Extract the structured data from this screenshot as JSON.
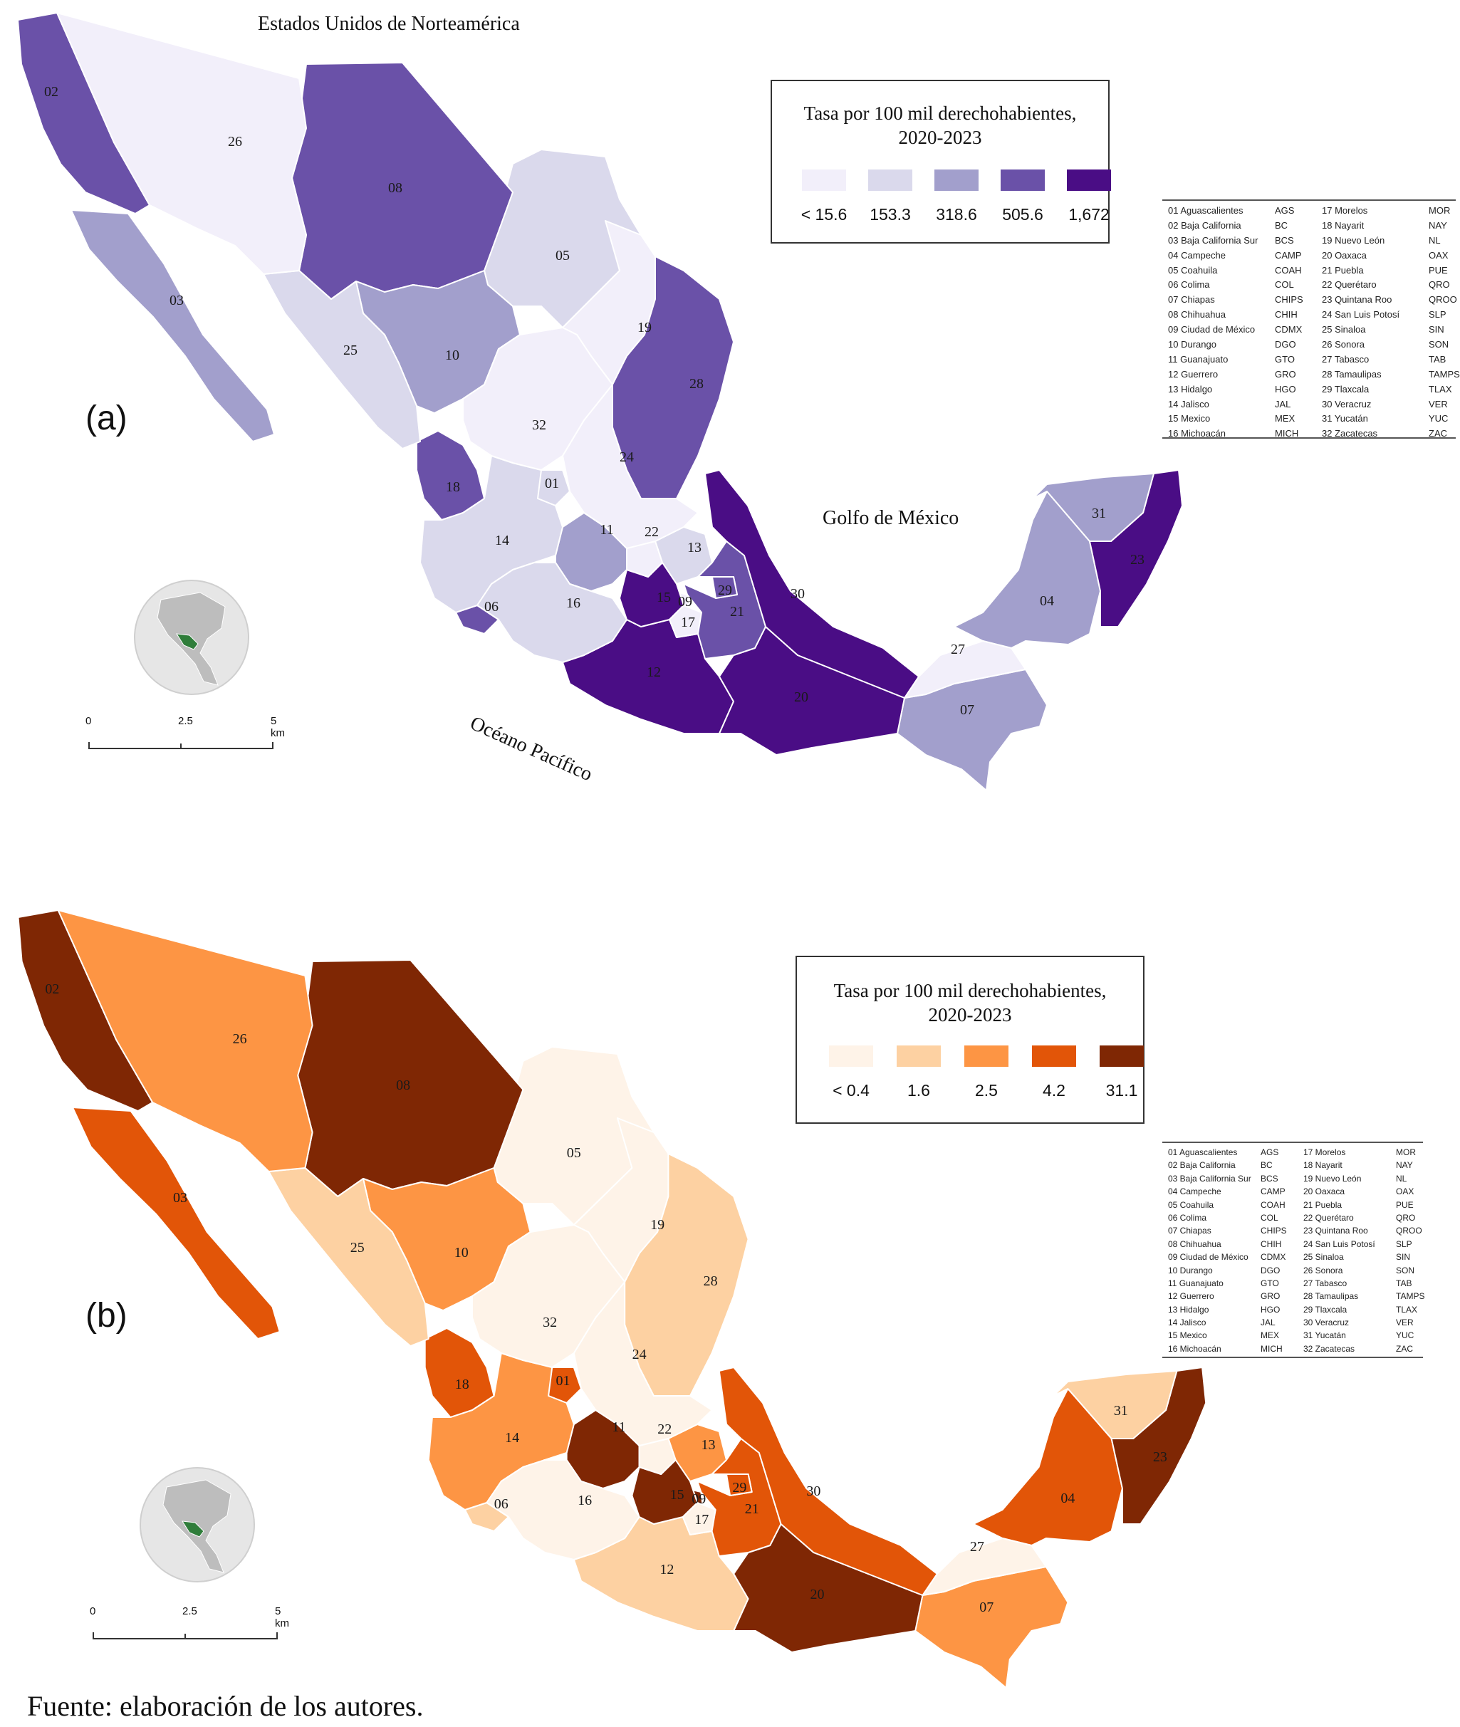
{
  "figure": {
    "source_note": "Fuente: elaboración de los autores.",
    "panels": [
      {
        "id": "a",
        "panel_label": "(a)",
        "labels": {
          "north": "Estados Unidos de Norteamérica",
          "gulf": "Golfo de México",
          "pacific": "Océano Pacífico"
        },
        "legend": {
          "title_line1": "Tasa por 100 mil derechohabientes,",
          "title_line2": "2020-2023",
          "classes": [
            {
              "label": "< 15.6",
              "color": "#f2effa"
            },
            {
              "label": "153.3",
              "color": "#dad9ec"
            },
            {
              "label": "318.6",
              "color": "#a29fcc"
            },
            {
              "label": "505.6",
              "color": "#6a51a8"
            },
            {
              "label": "1,672",
              "color": "#4a0d85"
            }
          ]
        },
        "scale": {
          "ticks": [
            "0",
            "2.5",
            "5 km"
          ]
        },
        "state_class": {
          "01": 1,
          "02": 3,
          "03": 2,
          "04": 2,
          "05": 1,
          "06": 3,
          "07": 2,
          "08": 3,
          "09": 0,
          "10": 2,
          "11": 2,
          "12": 4,
          "13": 1,
          "14": 1,
          "15": 4,
          "16": 1,
          "17": 0,
          "18": 3,
          "19": 0,
          "20": 4,
          "21": 3,
          "22": 0,
          "23": 4,
          "24": 0,
          "25": 1,
          "26": 0,
          "27": 0,
          "28": 3,
          "29": 3,
          "30": 4,
          "31": 2,
          "32": 0
        }
      },
      {
        "id": "b",
        "panel_label": "(b)",
        "legend": {
          "title_line1": "Tasa por 100 mil derechohabientes,",
          "title_line2": "2020-2023",
          "classes": [
            {
              "label": "< 0.4",
              "color": "#fef3e8"
            },
            {
              "label": "1.6",
              "color": "#fdd1a2"
            },
            {
              "label": "2.5",
              "color": "#fd9544"
            },
            {
              "label": "4.2",
              "color": "#e25508"
            },
            {
              "label": "31.1",
              "color": "#7f2704"
            }
          ]
        },
        "scale": {
          "ticks": [
            "0",
            "2.5",
            "5 km"
          ]
        },
        "state_class": {
          "01": 3,
          "02": 4,
          "03": 3,
          "04": 3,
          "05": 0,
          "06": 1,
          "07": 2,
          "08": 4,
          "09": 4,
          "10": 2,
          "11": 4,
          "12": 1,
          "13": 2,
          "14": 2,
          "15": 4,
          "16": 0,
          "17": 0,
          "18": 3,
          "19": 0,
          "20": 4,
          "21": 3,
          "22": 0,
          "23": 4,
          "24": 0,
          "25": 1,
          "26": 2,
          "27": 0,
          "28": 1,
          "29": 3,
          "30": 3,
          "31": 1,
          "32": 0
        }
      }
    ],
    "states": [
      {
        "code": "01",
        "name": "Aguascalientes",
        "abbr": "AGS"
      },
      {
        "code": "02",
        "name": "Baja California",
        "abbr": "BC"
      },
      {
        "code": "03",
        "name": "Baja California Sur",
        "abbr": "BCS"
      },
      {
        "code": "04",
        "name": "Campeche",
        "abbr": "CAMP"
      },
      {
        "code": "05",
        "name": "Coahuila",
        "abbr": "COAH"
      },
      {
        "code": "06",
        "name": "Colima",
        "abbr": "COL"
      },
      {
        "code": "07",
        "name": "Chiapas",
        "abbr": "CHIPS"
      },
      {
        "code": "08",
        "name": "Chihuahua",
        "abbr": "CHIH"
      },
      {
        "code": "09",
        "name": "Ciudad de México",
        "abbr": "CDMX"
      },
      {
        "code": "10",
        "name": "Durango",
        "abbr": "DGO"
      },
      {
        "code": "11",
        "name": "Guanajuato",
        "abbr": "GTO"
      },
      {
        "code": "12",
        "name": "Guerrero",
        "abbr": "GRO"
      },
      {
        "code": "13",
        "name": "Hidalgo",
        "abbr": "HGO"
      },
      {
        "code": "14",
        "name": "Jalisco",
        "abbr": "JAL"
      },
      {
        "code": "15",
        "name": "Mexico",
        "abbr": "MEX"
      },
      {
        "code": "16",
        "name": "Michoacán",
        "abbr": "MICH"
      },
      {
        "code": "17",
        "name": "Morelos",
        "abbr": "MOR"
      },
      {
        "code": "18",
        "name": "Nayarit",
        "abbr": "NAY"
      },
      {
        "code": "19",
        "name": "Nuevo León",
        "abbr": "NL"
      },
      {
        "code": "20",
        "name": "Oaxaca",
        "abbr": "OAX"
      },
      {
        "code": "21",
        "name": "Puebla",
        "abbr": "PUE"
      },
      {
        "code": "22",
        "name": "Querétaro",
        "abbr": "QRO"
      },
      {
        "code": "23",
        "name": "Quintana Roo",
        "abbr": "QROO"
      },
      {
        "code": "24",
        "name": "San Luis Potosí",
        "abbr": "SLP"
      },
      {
        "code": "25",
        "name": "Sinaloa",
        "abbr": "SIN"
      },
      {
        "code": "26",
        "name": "Sonora",
        "abbr": "SON"
      },
      {
        "code": "27",
        "name": "Tabasco",
        "abbr": "TAB"
      },
      {
        "code": "28",
        "name": "Tamaulipas",
        "abbr": "TAMPS"
      },
      {
        "code": "29",
        "name": "Tlaxcala",
        "abbr": "TLAX"
      },
      {
        "code": "30",
        "name": "Veracruz",
        "abbr": "VER"
      },
      {
        "code": "31",
        "name": "Yucatán",
        "abbr": "YUC"
      },
      {
        "code": "32",
        "name": "Zacatecas",
        "abbr": "ZAC"
      }
    ]
  }
}
